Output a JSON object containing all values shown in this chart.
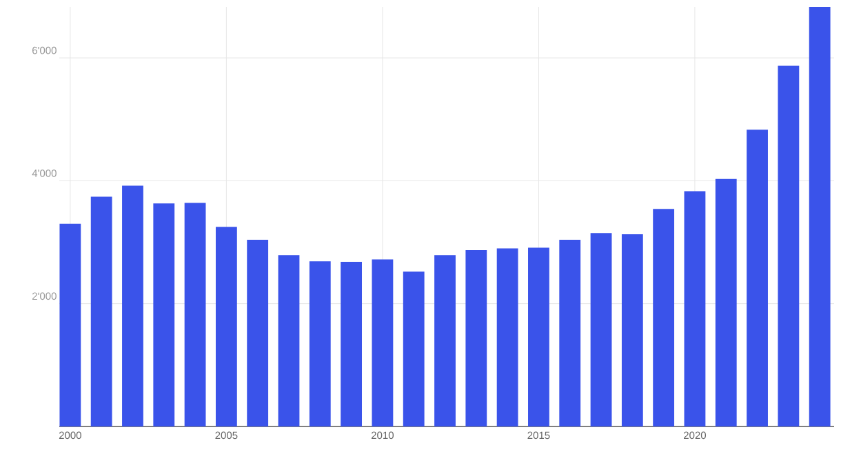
{
  "chart_data": {
    "type": "bar",
    "x": [
      2000,
      2001,
      2002,
      2003,
      2004,
      2005,
      2006,
      2007,
      2008,
      2009,
      2010,
      2011,
      2012,
      2013,
      2014,
      2015,
      2016,
      2017,
      2018,
      2019,
      2020,
      2021,
      2022,
      2023,
      2024
    ],
    "values": [
      3300,
      3740,
      3920,
      3630,
      3640,
      3250,
      3040,
      2790,
      2690,
      2680,
      2720,
      2520,
      2790,
      2870,
      2900,
      2910,
      3040,
      3150,
      3130,
      3540,
      3830,
      4030,
      4830,
      5870,
      6830
    ],
    "color": "#3a53ea",
    "xlim": [
      1999.65,
      2024.46
    ],
    "xticks": [
      2000,
      2005,
      2010,
      2015,
      2020
    ],
    "ylim": [
      0,
      6830
    ],
    "yticks": [
      {
        "value": 2000,
        "label": "2'000"
      },
      {
        "value": 4000,
        "label": "4'000"
      },
      {
        "value": 6000,
        "label": "6'000"
      }
    ],
    "grid": true
  }
}
